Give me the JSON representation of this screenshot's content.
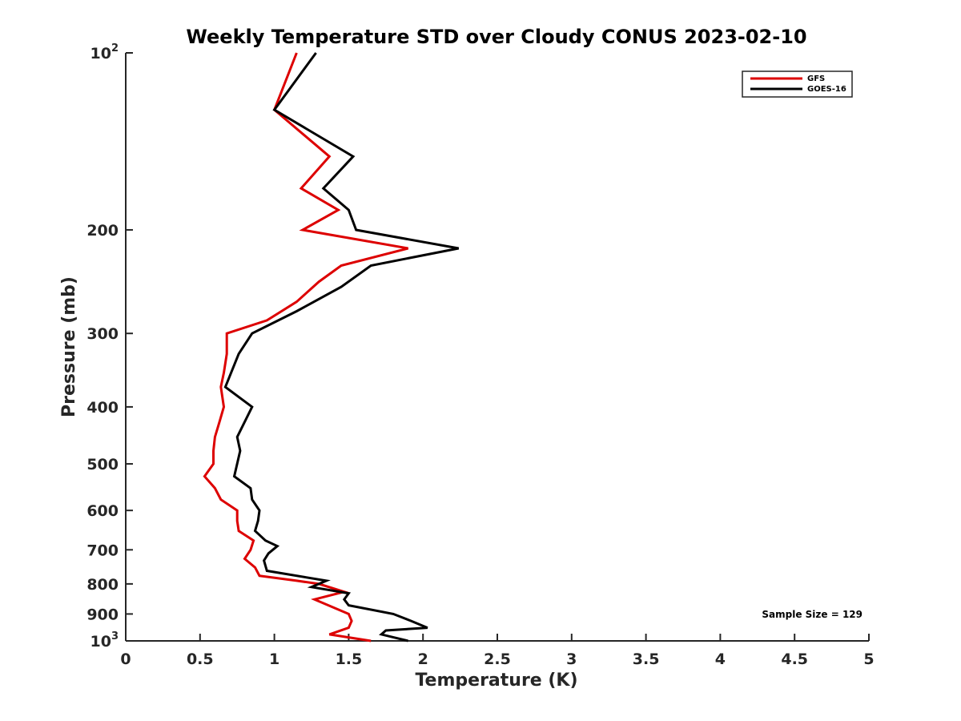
{
  "chart_data": {
    "type": "line",
    "title": "Weekly Temperature STD over Cloudy CONUS 2023-02-10",
    "xlabel": "Temperature (K)",
    "ylabel": "Pressure (mb)",
    "xlim": [
      0,
      5
    ],
    "ylim": [
      100,
      1000
    ],
    "y_scale": "log",
    "y_reversed": true,
    "grid": false,
    "legend_position": "top-right",
    "x_ticks": [
      {
        "value": 0,
        "label": "0"
      },
      {
        "value": 0.5,
        "label": "0.5"
      },
      {
        "value": 1,
        "label": "1"
      },
      {
        "value": 1.5,
        "label": "1.5"
      },
      {
        "value": 2,
        "label": "2"
      },
      {
        "value": 2.5,
        "label": "2.5"
      },
      {
        "value": 3,
        "label": "3"
      },
      {
        "value": 3.5,
        "label": "3.5"
      },
      {
        "value": 4,
        "label": "4"
      },
      {
        "value": 4.5,
        "label": "4.5"
      },
      {
        "value": 5,
        "label": "5"
      }
    ],
    "y_ticks": [
      {
        "value": 100,
        "label": "10",
        "sup": "2"
      },
      {
        "value": 200,
        "label": "200"
      },
      {
        "value": 300,
        "label": "300"
      },
      {
        "value": 400,
        "label": "400"
      },
      {
        "value": 500,
        "label": "500"
      },
      {
        "value": 600,
        "label": "600"
      },
      {
        "value": 700,
        "label": "700"
      },
      {
        "value": 800,
        "label": "800"
      },
      {
        "value": 900,
        "label": "900"
      },
      {
        "value": 1000,
        "label": "10",
        "sup": "3"
      }
    ],
    "annotation": "Sample Size = 129",
    "series": [
      {
        "name": "GFS",
        "color": "#dd0000",
        "points": [
          {
            "x": 1.15,
            "y": 100
          },
          {
            "x": 1.0,
            "y": 125
          },
          {
            "x": 1.37,
            "y": 150
          },
          {
            "x": 1.18,
            "y": 170
          },
          {
            "x": 1.43,
            "y": 185
          },
          {
            "x": 1.19,
            "y": 200
          },
          {
            "x": 1.9,
            "y": 215
          },
          {
            "x": 1.45,
            "y": 230
          },
          {
            "x": 1.3,
            "y": 245
          },
          {
            "x": 1.15,
            "y": 265
          },
          {
            "x": 0.95,
            "y": 285
          },
          {
            "x": 0.68,
            "y": 300
          },
          {
            "x": 0.68,
            "y": 325
          },
          {
            "x": 0.66,
            "y": 350
          },
          {
            "x": 0.64,
            "y": 370
          },
          {
            "x": 0.66,
            "y": 400
          },
          {
            "x": 0.63,
            "y": 425
          },
          {
            "x": 0.6,
            "y": 450
          },
          {
            "x": 0.59,
            "y": 475
          },
          {
            "x": 0.59,
            "y": 500
          },
          {
            "x": 0.53,
            "y": 525
          },
          {
            "x": 0.6,
            "y": 550
          },
          {
            "x": 0.64,
            "y": 575
          },
          {
            "x": 0.75,
            "y": 600
          },
          {
            "x": 0.75,
            "y": 625
          },
          {
            "x": 0.76,
            "y": 650
          },
          {
            "x": 0.86,
            "y": 675
          },
          {
            "x": 0.84,
            "y": 700
          },
          {
            "x": 0.8,
            "y": 725
          },
          {
            "x": 0.87,
            "y": 750
          },
          {
            "x": 0.9,
            "y": 775
          },
          {
            "x": 1.15,
            "y": 790
          },
          {
            "x": 1.3,
            "y": 800
          },
          {
            "x": 1.47,
            "y": 825
          },
          {
            "x": 1.27,
            "y": 850
          },
          {
            "x": 1.5,
            "y": 900
          },
          {
            "x": 1.52,
            "y": 925
          },
          {
            "x": 1.5,
            "y": 950
          },
          {
            "x": 1.37,
            "y": 975
          },
          {
            "x": 1.65,
            "y": 1000
          }
        ]
      },
      {
        "name": "GOES-16",
        "color": "#000000",
        "points": [
          {
            "x": 1.28,
            "y": 100
          },
          {
            "x": 1.0,
            "y": 125
          },
          {
            "x": 1.53,
            "y": 150
          },
          {
            "x": 1.33,
            "y": 170
          },
          {
            "x": 1.5,
            "y": 185
          },
          {
            "x": 1.55,
            "y": 200
          },
          {
            "x": 2.24,
            "y": 215
          },
          {
            "x": 1.65,
            "y": 230
          },
          {
            "x": 1.45,
            "y": 250
          },
          {
            "x": 1.15,
            "y": 275
          },
          {
            "x": 0.85,
            "y": 300
          },
          {
            "x": 0.76,
            "y": 325
          },
          {
            "x": 0.67,
            "y": 370
          },
          {
            "x": 0.85,
            "y": 400
          },
          {
            "x": 0.75,
            "y": 450
          },
          {
            "x": 0.77,
            "y": 475
          },
          {
            "x": 0.73,
            "y": 525
          },
          {
            "x": 0.84,
            "y": 550
          },
          {
            "x": 0.85,
            "y": 575
          },
          {
            "x": 0.9,
            "y": 600
          },
          {
            "x": 0.89,
            "y": 625
          },
          {
            "x": 0.87,
            "y": 650
          },
          {
            "x": 0.94,
            "y": 675
          },
          {
            "x": 1.02,
            "y": 690
          },
          {
            "x": 0.96,
            "y": 710
          },
          {
            "x": 0.93,
            "y": 730
          },
          {
            "x": 0.95,
            "y": 760
          },
          {
            "x": 1.35,
            "y": 790
          },
          {
            "x": 1.25,
            "y": 810
          },
          {
            "x": 1.5,
            "y": 830
          },
          {
            "x": 1.47,
            "y": 850
          },
          {
            "x": 1.5,
            "y": 870
          },
          {
            "x": 1.8,
            "y": 900
          },
          {
            "x": 1.92,
            "y": 925
          },
          {
            "x": 2.03,
            "y": 950
          },
          {
            "x": 1.75,
            "y": 960
          },
          {
            "x": 1.72,
            "y": 975
          },
          {
            "x": 1.9,
            "y": 1000
          }
        ]
      }
    ]
  }
}
